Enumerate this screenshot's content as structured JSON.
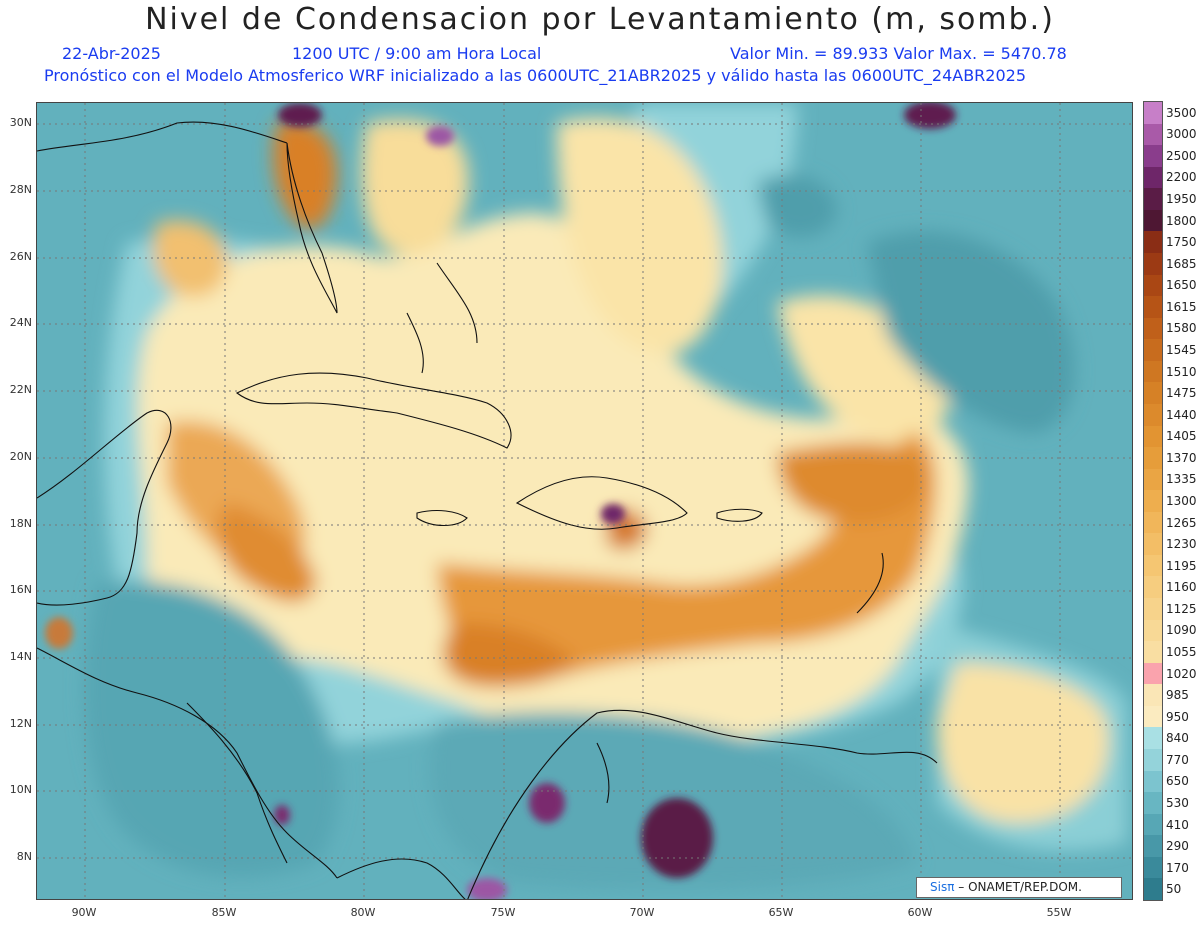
{
  "header": {
    "title": "Nivel de Condensacion por Levantamiento (m, somb.)",
    "date": "22-Abr-2025",
    "time": "1200 UTC / 9:00 am Hora Local",
    "min_max": "Valor Min. = 89.933   Valor Max. = 5470.78",
    "model": "Pronóstico con el Modelo Atmosferico WRF inicializado a las 0600UTC_21ABR2025 y válido hasta las  0600UTC_24ABR2025"
  },
  "axes": {
    "lat_labels": [
      "30N",
      "28N",
      "26N",
      "24N",
      "22N",
      "20N",
      "18N",
      "16N",
      "14N",
      "12N",
      "10N",
      "8N"
    ],
    "lon_labels": [
      "90W",
      "85W",
      "80W",
      "75W",
      "70W",
      "65W",
      "60W",
      "55W"
    ]
  },
  "colorbar": {
    "labels": [
      "3500",
      "3000",
      "2500",
      "2200",
      "1950",
      "1800",
      "1750",
      "1685",
      "1650",
      "1615",
      "1580",
      "1545",
      "1510",
      "1475",
      "1440",
      "1405",
      "1370",
      "1335",
      "1300",
      "1265",
      "1230",
      "1195",
      "1160",
      "1125",
      "1090",
      "1055",
      "1020",
      "985",
      "950",
      "840",
      "770",
      "650",
      "530",
      "410",
      "290",
      "170",
      "50"
    ],
    "colors": [
      "#c77fc8",
      "#a95aa8",
      "#8a3d8c",
      "#6e2669",
      "#5a1c46",
      "#4e1733",
      "#8a2d15",
      "#9c3a14",
      "#aa4714",
      "#b65416",
      "#c0601a",
      "#c86c1e",
      "#cf7722",
      "#d68126",
      "#dc8a2c",
      "#e29432",
      "#e69d3a",
      "#eaa544",
      "#eeae4e",
      "#f1b65a",
      "#f3be66",
      "#f5c672",
      "#f6cd7f",
      "#f7d38b",
      "#f8d996",
      "#f9dea2",
      "#faa3ad",
      "#fae6b6",
      "#fbebc0",
      "#a9e0e4",
      "#94d3da",
      "#7cc4cf",
      "#68b6c2",
      "#57a7b5",
      "#4898a8",
      "#3a8a9b",
      "#2e7c8d"
    ]
  },
  "logo": {
    "brand": "Sisπ",
    "text": " – ONAMET/REP.DOM."
  }
}
